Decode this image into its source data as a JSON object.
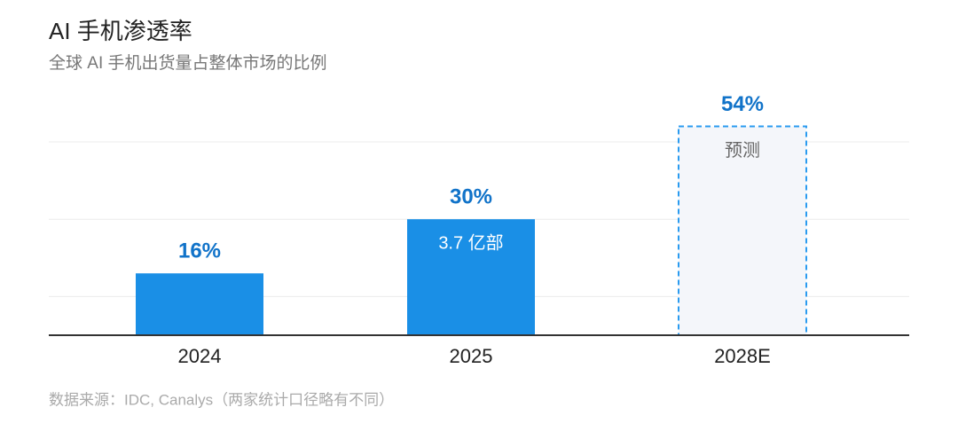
{
  "chart_data": {
    "type": "bar",
    "title": "AI 手机渗透率",
    "subtitle": "全球 AI 手机出货量占整体市场的比例",
    "categories": [
      "2024",
      "2025",
      "2028E"
    ],
    "values": [
      16,
      30,
      54
    ],
    "value_labels": [
      "16%",
      "30%",
      "54%"
    ],
    "bar_notes": [
      null,
      "3.7 亿部",
      "预测"
    ],
    "forecast": [
      false,
      false,
      true
    ],
    "color": "#1a8fe6",
    "forecast_color": "#2a9bf0",
    "label_color": "#1173c9",
    "ylim": [
      0,
      50
    ],
    "yticks": [
      10,
      30,
      50
    ],
    "grid": true,
    "source": "数据来源：IDC, Canalys（两家统计口径略有不同）"
  }
}
